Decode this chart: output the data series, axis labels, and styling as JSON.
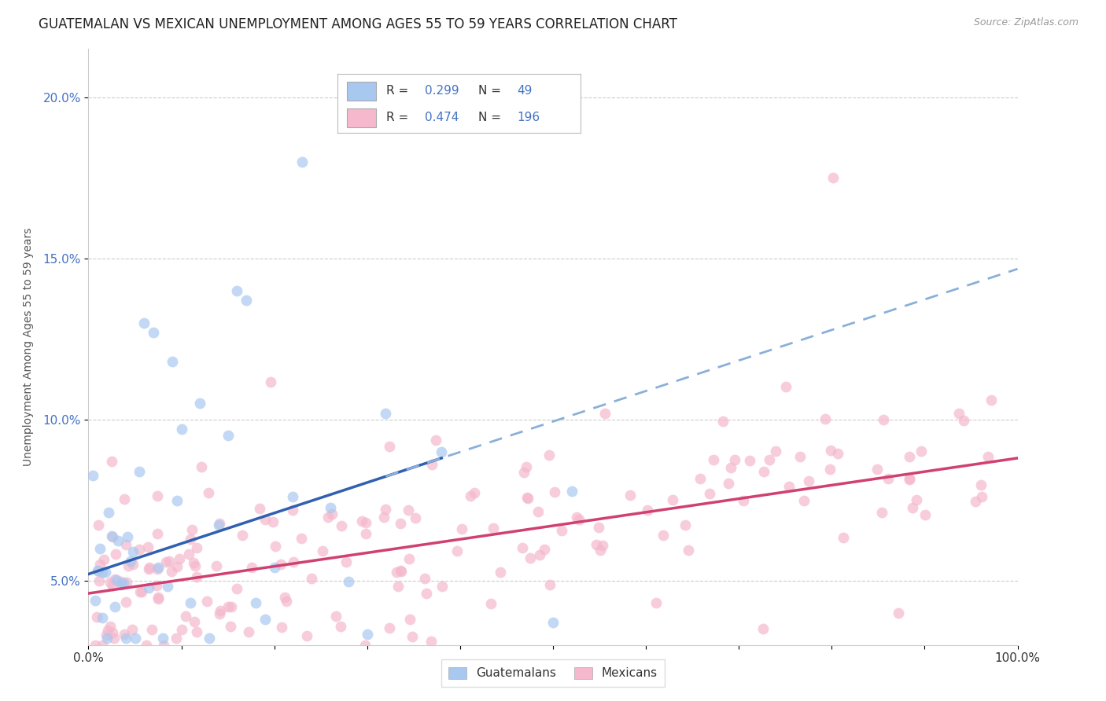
{
  "title": "GUATEMALAN VS MEXICAN UNEMPLOYMENT AMONG AGES 55 TO 59 YEARS CORRELATION CHART",
  "source": "Source: ZipAtlas.com",
  "ylabel": "Unemployment Among Ages 55 to 59 years",
  "ytick_labels": [
    "5.0%",
    "10.0%",
    "15.0%",
    "20.0%"
  ],
  "ytick_values": [
    0.05,
    0.1,
    0.15,
    0.2
  ],
  "xlim": [
    0.0,
    1.0
  ],
  "ylim": [
    0.03,
    0.215
  ],
  "guatemalan_color": "#a8c8f0",
  "mexican_color": "#f5b8cc",
  "guatemalan_line_color": "#3060b0",
  "mexican_line_color": "#d04070",
  "guatemalan_dashed_color": "#8ab0d8",
  "guatemalan_R": 0.299,
  "guatemalan_N": 49,
  "mexican_R": 0.474,
  "mexican_N": 196,
  "legend_label_guatemalan": "Guatemalans",
  "legend_label_mexican": "Mexicans",
  "background_color": "#ffffff",
  "grid_color": "#cccccc",
  "grid_style": "--",
  "title_fontsize": 12,
  "label_fontsize": 10,
  "tick_fontsize": 11,
  "ytick_color": "#4472c4",
  "xtick_color": "#333333",
  "legend_text_color_blue": "#4472c4",
  "legend_R_N_color": "#333333",
  "source_color": "#999999"
}
